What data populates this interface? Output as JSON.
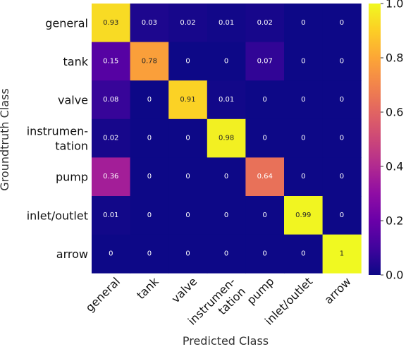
{
  "chart_data": {
    "type": "heatmap",
    "xlabel": "Predicted Class",
    "ylabel": "Groundtruth Class",
    "categories": [
      "general",
      "tank",
      "valve",
      "instrumen-\ntation",
      "pump",
      "inlet/outlet",
      "arrow"
    ],
    "rows": [
      "general",
      "tank",
      "valve",
      "instrumen-\ntation",
      "pump",
      "inlet/outlet",
      "arrow"
    ],
    "values": [
      [
        0.93,
        0.03,
        0.02,
        0.01,
        0.02,
        0,
        0
      ],
      [
        0.15,
        0.78,
        0,
        0,
        0.07,
        0,
        0
      ],
      [
        0.08,
        0,
        0.91,
        0.01,
        0,
        0,
        0
      ],
      [
        0.02,
        0,
        0,
        0.98,
        0,
        0,
        0
      ],
      [
        0.36,
        0,
        0,
        0,
        0.64,
        0,
        0
      ],
      [
        0.01,
        0,
        0,
        0,
        0,
        0.99,
        0
      ],
      [
        0,
        0,
        0,
        0,
        0,
        0,
        1
      ]
    ],
    "colormap": "plasma",
    "vmin": 0.0,
    "vmax": 1.0,
    "colorbar_ticks": [
      "0.0",
      "0.2",
      "0.4",
      "0.6",
      "0.8",
      "1.0"
    ],
    "grid": false
  }
}
